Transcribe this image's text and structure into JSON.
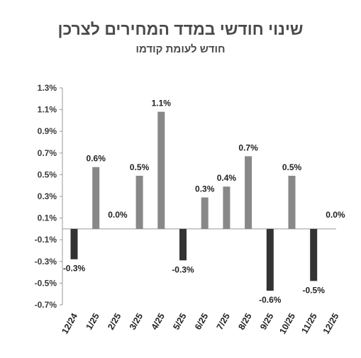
{
  "chart_data": {
    "type": "bar",
    "title": "שינוי חודשי במדד המחירים לצרכן",
    "subtitle": "חודש לעומת קודמו",
    "categories": [
      "12/24",
      "1/25",
      "2/25",
      "3/25",
      "4/25",
      "5/25",
      "6/25",
      "7/25",
      "8/25",
      "9/25",
      "10/25",
      "11/25",
      "12/25"
    ],
    "values": [
      -0.28,
      0.57,
      0.0,
      0.49,
      1.08,
      -0.29,
      0.29,
      0.39,
      0.67,
      -0.57,
      0.49,
      -0.48,
      0.0
    ],
    "data_labels": [
      "-0.3%",
      "0.6%",
      "0.0%",
      "0.5%",
      "1.1%",
      "-0.3%",
      "0.3%",
      "0.4%",
      "0.7%",
      "-0.6%",
      "0.5%",
      "-0.5%",
      "0.0%"
    ],
    "ylim": [
      -0.7,
      1.3
    ],
    "yticks": [
      1.3,
      1.1,
      0.9,
      0.7,
      0.5,
      0.3,
      0.1,
      -0.1,
      -0.3,
      -0.5,
      -0.7
    ],
    "ytick_labels": [
      "1.3%",
      "1.1%",
      "0.9%",
      "0.7%",
      "0.5%",
      "0.3%",
      "0.1%",
      "-0.1%",
      "-0.3%",
      "-0.5%",
      "-0.7%"
    ],
    "grid": false,
    "colors": {
      "positive": "#888888",
      "negative": "#333333",
      "axis": "#999999"
    }
  }
}
